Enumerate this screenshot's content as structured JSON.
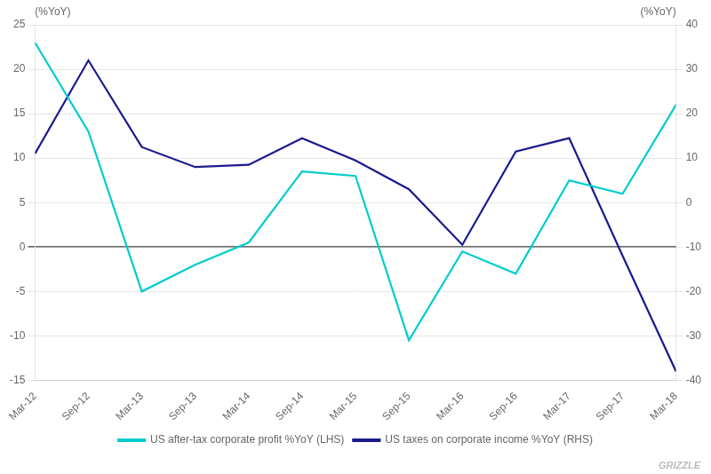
{
  "chart_data": {
    "type": "line",
    "categories": [
      "Mar-12",
      "Sep-12",
      "Mar-13",
      "Sep-13",
      "Mar-14",
      "Sep-14",
      "Mar-15",
      "Sep-15",
      "Mar-16",
      "Sep-16",
      "Mar-17",
      "Sep-17",
      "Mar-18"
    ],
    "series": [
      {
        "name": "US after-tax corporate profit %YoY (LHS)",
        "color": "#00CCCC",
        "axis": "y",
        "values": [
          23.0,
          13.0,
          -5.0,
          -2.0,
          0.5,
          8.5,
          8.0,
          -10.5,
          -0.5,
          -3.0,
          7.5,
          6.0,
          16.0
        ]
      },
      {
        "name": "US taxes on corporate income %YoY (RHS)",
        "color": "#1a1a8c",
        "axis": "y2",
        "values": [
          11.0,
          32.0,
          12.5,
          8.0,
          8.5,
          14.5,
          9.5,
          3.0,
          -9.5,
          11.5,
          14.5,
          -12.0,
          -38.0
        ]
      }
    ],
    "ylabel": "(%YoY)",
    "y2label": "(%YoY)",
    "ylim": [
      -15,
      25
    ],
    "yticks": [
      -15,
      -10,
      -5,
      0,
      5,
      10,
      15,
      20,
      25
    ],
    "y2lim": [
      -40,
      40
    ],
    "y2ticks": [
      -40,
      -30,
      -20,
      -10,
      0,
      10,
      20,
      30,
      40
    ],
    "grid": true,
    "legend": "bottom",
    "annotations": [
      "GRIZZLE"
    ]
  }
}
